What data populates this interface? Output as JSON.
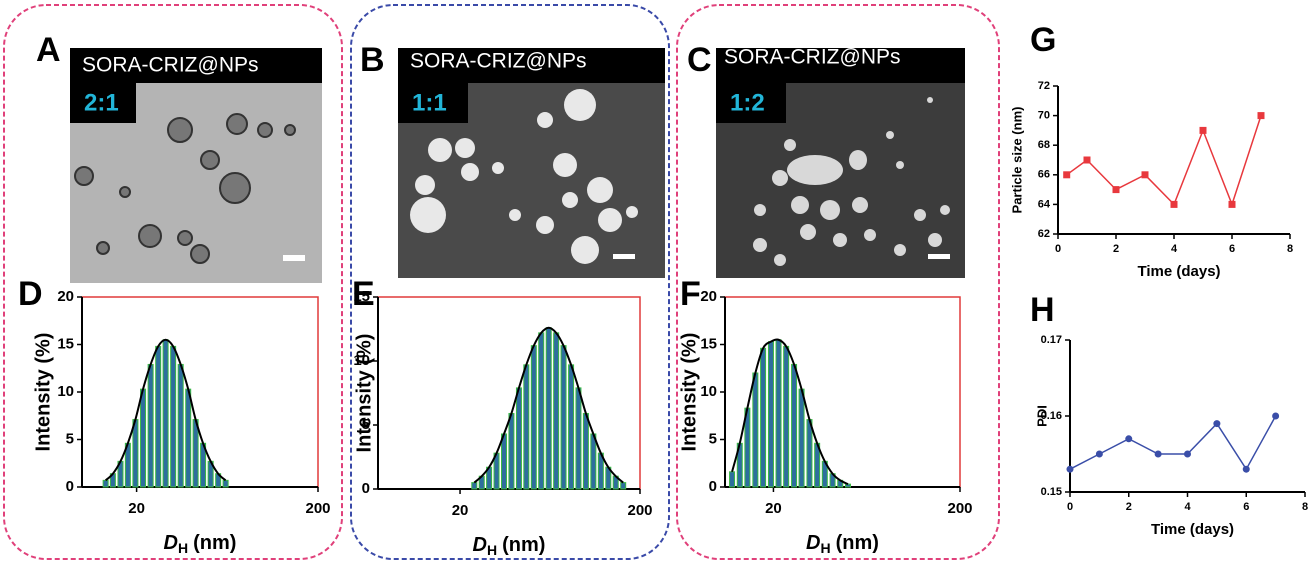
{
  "images": [
    {
      "letter": "A",
      "caption": "SORA-CRIZ@NPs",
      "ratio": "2:1"
    },
    {
      "letter": "B",
      "caption": "SORA-CRIZ@NPs",
      "ratio": "1:1"
    },
    {
      "letter": "C",
      "caption": "SORA-CRIZ@NPs",
      "ratio": "1:2"
    }
  ],
  "chart_data": [
    {
      "type": "bar",
      "letter": "D",
      "log_x": true,
      "x": [
        13.5,
        14.8,
        16.3,
        17.9,
        19.7,
        21.7,
        23.9,
        26.3,
        28.9,
        31.8,
        35.0,
        38.5,
        42.3,
        46.5,
        51.2,
        56.3,
        61.9
      ],
      "values": [
        0.7,
        1.4,
        2.7,
        4.6,
        7.1,
        10.3,
        12.9,
        14.8,
        15.5,
        14.8,
        12.9,
        10.3,
        7.1,
        4.6,
        2.7,
        1.4,
        0.7
      ],
      "xlim": [
        10,
        200
      ],
      "xticks": [
        20,
        200
      ],
      "ylim": [
        0,
        20
      ],
      "yticks": [
        0,
        5,
        10,
        15,
        20
      ],
      "y_label": "Intensity (%)",
      "x_label": {
        "main": "D",
        "sub": "H",
        "rest": "(nm)"
      },
      "color": "#2e6e9e",
      "frame_color": "#e03a3a"
    },
    {
      "type": "bar",
      "letter": "E",
      "log_x": true,
      "x": [
        24.0,
        26.4,
        29.0,
        31.9,
        35.1,
        38.6,
        42.5,
        46.7,
        51.4,
        56.5,
        62.2,
        68.4,
        75.2,
        82.8,
        91.0,
        100.1,
        110.1,
        121.2,
        133.3,
        146.6,
        161.3
      ],
      "values": [
        0.5,
        1.0,
        1.7,
        2.8,
        4.3,
        5.9,
        7.9,
        9.7,
        11.2,
        12.2,
        12.6,
        12.2,
        11.2,
        9.7,
        7.9,
        5.9,
        4.3,
        2.8,
        1.7,
        1.0,
        0.5
      ],
      "xlim": [
        7,
        200
      ],
      "xticks": [
        20,
        200
      ],
      "ylim": [
        0,
        15
      ],
      "yticks": [
        0,
        5,
        10,
        15
      ],
      "y_label": "Intensity (%)",
      "x_label": {
        "main": "D",
        "sub": "H",
        "rest": "(nm)"
      },
      "color": "#2e6e9e",
      "frame_color": "#e03a3a"
    },
    {
      "type": "bar",
      "letter": "F",
      "log_x": true,
      "x": [
        12.0,
        13.2,
        14.5,
        16.0,
        17.6,
        19.4,
        21.3,
        23.4,
        25.8,
        28.3,
        31.2,
        34.3,
        37.7,
        41.5,
        45.6,
        50.2
      ],
      "values": [
        1.6,
        4.6,
        8.3,
        12.0,
        14.6,
        15.3,
        15.5,
        14.8,
        12.9,
        10.3,
        7.1,
        4.6,
        2.7,
        1.4,
        0.7,
        0.3
      ],
      "xlim": [
        11,
        200
      ],
      "xticks": [
        20,
        200
      ],
      "ylim": [
        0,
        20
      ],
      "yticks": [
        0,
        5,
        10,
        15,
        20
      ],
      "y_label": "Intensity (%)",
      "x_label": {
        "main": "D",
        "sub": "H",
        "rest": "(nm)"
      },
      "color": "#2e6e9e",
      "frame_color": "#e03a3a"
    },
    {
      "type": "line",
      "letter": "G",
      "marker": "square",
      "x": [
        0.3,
        1,
        2,
        3,
        4,
        5,
        6,
        7
      ],
      "values": [
        66,
        67,
        65,
        66,
        64,
        69,
        64,
        70
      ],
      "xlim": [
        0,
        8
      ],
      "xticks": [
        0,
        2,
        4,
        6,
        8
      ],
      "ylim": [
        62,
        72
      ],
      "yticks": [
        62,
        64,
        66,
        68,
        70,
        72
      ],
      "y_label": "Particle size (nm)",
      "x_label": "Time (days)",
      "color": "#e8383d"
    },
    {
      "type": "line",
      "letter": "H",
      "marker": "circle",
      "x": [
        0,
        1,
        2,
        3,
        4,
        5,
        6,
        7
      ],
      "values": [
        0.153,
        0.155,
        0.157,
        0.155,
        0.155,
        0.159,
        0.153,
        0.16
      ],
      "xlim": [
        0,
        8
      ],
      "xticks": [
        0,
        2,
        4,
        6,
        8
      ],
      "ylim": [
        0.15,
        0.17
      ],
      "yticks": [
        0.15,
        0.16,
        0.17
      ],
      "y_label": "PDI",
      "x_label": "Time (days)",
      "color": "#3a4ea8"
    }
  ]
}
